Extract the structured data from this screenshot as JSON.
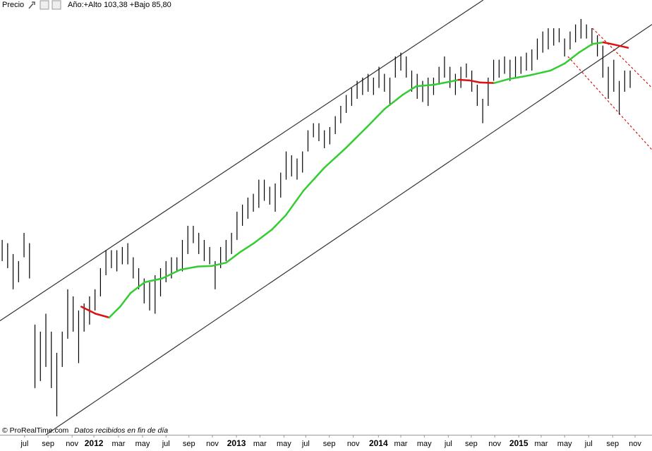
{
  "header": {
    "price_label": "Precio",
    "range_text": "Año:+Alto 103,38 +Bajo 85,80"
  },
  "footer": {
    "source": "© ProRealTime.com",
    "note": "Datos recibidos en fin de día"
  },
  "chart_data": {
    "type": "ohlc",
    "x": [
      0,
      1,
      2,
      3,
      4,
      5,
      6,
      7,
      8,
      9,
      10,
      11,
      12,
      13,
      14,
      15,
      16,
      17,
      18,
      19,
      20,
      21,
      22,
      23,
      24,
      25,
      26,
      27,
      28,
      29,
      30,
      31,
      32,
      33,
      34,
      35,
      36,
      37,
      38,
      39,
      40,
      41,
      42,
      43,
      44,
      45,
      46,
      47,
      48,
      49,
      50,
      51,
      52,
      53,
      54,
      55,
      56,
      57,
      58,
      59,
      60,
      61,
      62,
      63,
      64,
      65,
      66,
      67,
      68,
      69,
      70,
      71,
      72,
      73,
      74,
      75,
      76,
      77,
      78,
      79,
      80,
      81,
      82,
      83,
      84,
      85,
      86,
      87,
      88,
      89,
      90,
      91,
      92,
      93,
      94,
      95,
      96,
      97,
      98,
      99,
      100,
      101,
      102,
      103,
      104,
      105,
      106,
      107,
      108,
      109,
      110,
      111,
      112,
      113,
      114,
      115
    ],
    "high": [
      62.7,
      62.1,
      60.1,
      58.8,
      64.0,
      62.1,
      47.1,
      45.8,
      49.1,
      45.8,
      41.9,
      45.8,
      53.6,
      52.3,
      49.7,
      51.0,
      52.3,
      53.6,
      57.5,
      60.8,
      60.8,
      60.8,
      61.4,
      62.1,
      59.5,
      57.5,
      55.6,
      54.9,
      56.2,
      57.5,
      58.8,
      59.5,
      59.5,
      62.7,
      65.3,
      65.3,
      64.0,
      62.7,
      61.4,
      58.8,
      61.4,
      62.7,
      64.0,
      67.9,
      69.2,
      70.5,
      71.2,
      73.8,
      73.8,
      72.5,
      73.1,
      75.1,
      79.0,
      78.3,
      77.7,
      79.0,
      82.9,
      84.2,
      84.2,
      82.9,
      83.5,
      85.5,
      87.4,
      89.4,
      90.7,
      92.0,
      92.6,
      93.3,
      92.6,
      94.6,
      93.3,
      92.6,
      96.5,
      97.2,
      96.5,
      93.9,
      93.3,
      92.0,
      92.6,
      92.6,
      94.6,
      96.5,
      94.6,
      93.3,
      94.6,
      95.2,
      93.9,
      91.3,
      88.7,
      92.6,
      95.9,
      95.9,
      96.5,
      95.9,
      96.5,
      96.5,
      97.2,
      97.8,
      99.8,
      101.1,
      101.7,
      101.7,
      101.7,
      99.8,
      101.1,
      102.4,
      103.4,
      102.4,
      101.7,
      100.4,
      98.5,
      94.6,
      95.9,
      92.0,
      93.9,
      93.9
    ],
    "low": [
      58.8,
      57.5,
      53.6,
      54.9,
      59.5,
      55.6,
      35.4,
      36.7,
      39.3,
      35.4,
      30.2,
      39.3,
      44.5,
      45.8,
      40.0,
      45.8,
      47.1,
      49.7,
      52.3,
      56.2,
      57.5,
      56.9,
      58.2,
      58.2,
      55.6,
      53.6,
      51.0,
      49.7,
      49.1,
      52.3,
      54.9,
      55.6,
      56.9,
      56.9,
      60.1,
      62.1,
      60.1,
      58.8,
      58.2,
      53.6,
      57.5,
      58.8,
      60.1,
      62.7,
      65.3,
      66.6,
      67.9,
      68.6,
      69.9,
      69.2,
      67.9,
      70.5,
      73.8,
      74.4,
      73.8,
      75.1,
      79.0,
      81.6,
      80.9,
      79.6,
      80.3,
      82.2,
      84.2,
      86.1,
      87.4,
      88.7,
      89.4,
      90.0,
      89.4,
      90.7,
      90.0,
      87.4,
      92.6,
      93.9,
      92.6,
      90.0,
      88.7,
      88.1,
      87.4,
      89.4,
      91.3,
      92.6,
      90.7,
      89.4,
      90.7,
      92.6,
      90.0,
      87.4,
      84.2,
      87.4,
      92.0,
      92.6,
      93.3,
      92.0,
      92.6,
      93.3,
      93.9,
      93.9,
      95.9,
      97.2,
      97.8,
      98.5,
      99.1,
      96.5,
      97.8,
      99.1,
      99.8,
      99.8,
      98.5,
      96.5,
      92.6,
      88.7,
      90.0,
      85.8,
      90.0,
      90.7
    ],
    "bar_color": "#000000",
    "moving_average": {
      "x": [
        14.5,
        17.1,
        19.6,
        21.6,
        23.5,
        26.1,
        29.3,
        32.6,
        35.8,
        38.4,
        41.0,
        43.5,
        46.1,
        49.4,
        51.9,
        55.2,
        59.0,
        62.9,
        66.8,
        70.0,
        73.3,
        75.8,
        79.1,
        81.7,
        83.6,
        85.5,
        87.5,
        90.1,
        92.6,
        96.5,
        100.4,
        103.0,
        105.6,
        108.1,
        110.1,
        112.0,
        114.6
      ],
      "values": [
        50.4,
        49.1,
        48.4,
        50.4,
        52.9,
        54.9,
        55.6,
        57.2,
        57.8,
        57.9,
        58.5,
        60.4,
        62.1,
        64.6,
        67.2,
        71.8,
        76.0,
        79.6,
        83.5,
        86.8,
        89.4,
        91.0,
        91.3,
        91.8,
        92.2,
        92.1,
        91.7,
        91.6,
        92.3,
        93.0,
        93.9,
        95.2,
        97.2,
        98.8,
        99.1,
        98.7,
        98.1
      ],
      "up_color": "#33cc33",
      "down_color": "#dd1111"
    },
    "trendlines": [
      {
        "x": [
          -0.4,
          88.1
        ],
        "y": [
          47.8,
          106.9
        ],
        "color": "#333333",
        "dashed": false
      },
      {
        "x": [
          8.0,
          119.0
        ],
        "y": [
          26.8,
          102.4
        ],
        "color": "#333333",
        "dashed": false
      },
      {
        "x": [
          108.1,
          119.0
        ],
        "y": [
          101.7,
          90.7
        ],
        "color": "#dd1111",
        "dashed": true
      },
      {
        "x": [
          103.6,
          119.0
        ],
        "y": [
          96.5,
          79.3
        ],
        "color": "#dd1111",
        "dashed": true
      }
    ],
    "xlim": [
      -0.4,
      119.0
    ],
    "ylim": [
      26.8,
      106.9
    ],
    "xticks": [
      {
        "value": 4.1,
        "label": "jul"
      },
      {
        "value": 8.4,
        "label": "sep"
      },
      {
        "value": 12.8,
        "label": "nov"
      },
      {
        "value": 16.8,
        "label": "2012"
      },
      {
        "value": 21.3,
        "label": "mar"
      },
      {
        "value": 25.7,
        "label": "may"
      },
      {
        "value": 30.0,
        "label": "jul"
      },
      {
        "value": 34.2,
        "label": "sep"
      },
      {
        "value": 38.5,
        "label": "nov"
      },
      {
        "value": 42.9,
        "label": "2013"
      },
      {
        "value": 47.2,
        "label": "mar"
      },
      {
        "value": 51.6,
        "label": "may"
      },
      {
        "value": 55.6,
        "label": "jul"
      },
      {
        "value": 59.9,
        "label": "sep"
      },
      {
        "value": 64.3,
        "label": "nov"
      },
      {
        "value": 68.9,
        "label": "2014"
      },
      {
        "value": 73.0,
        "label": "mar"
      },
      {
        "value": 77.3,
        "label": "may"
      },
      {
        "value": 81.7,
        "label": "jul"
      },
      {
        "value": 85.9,
        "label": "sep"
      },
      {
        "value": 90.2,
        "label": "nov"
      },
      {
        "value": 94.6,
        "label": "2015"
      },
      {
        "value": 98.7,
        "label": "mar"
      },
      {
        "value": 103.0,
        "label": "may"
      },
      {
        "value": 107.4,
        "label": "jul"
      },
      {
        "value": 111.8,
        "label": "sep"
      },
      {
        "value": 115.9,
        "label": "nov"
      }
    ]
  }
}
